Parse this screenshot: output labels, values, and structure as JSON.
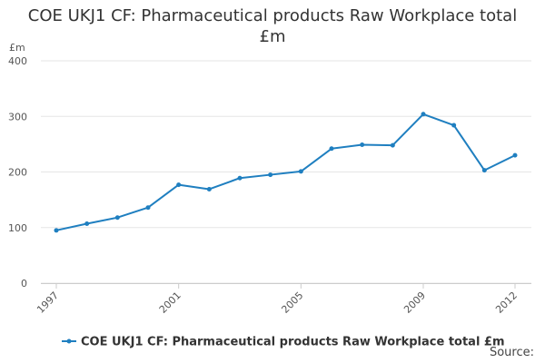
{
  "chart_data": {
    "type": "line",
    "title_line1": "COE UKJ1 CF: Pharmaceutical products Raw Workplace total",
    "title_line2": "£m",
    "ylabel": "£m",
    "x": [
      1997,
      1998,
      1999,
      2000,
      2001,
      2002,
      2003,
      2004,
      2005,
      2006,
      2007,
      2008,
      2009,
      2010,
      2011,
      2012
    ],
    "x_tick_labels": [
      "1997",
      "2001",
      "2005",
      "2009",
      "2012"
    ],
    "x_tick_values": [
      1997,
      2001,
      2005,
      2009,
      2012
    ],
    "series": [
      {
        "name": "COE UKJ1 CF: Pharmaceutical products Raw Workplace total £m",
        "color": "#1f7fc0",
        "values": [
          95,
          107,
          118,
          136,
          177,
          169,
          189,
          195,
          201,
          242,
          249,
          248,
          304,
          284,
          203,
          230
        ]
      }
    ],
    "ylim": [
      0,
      400
    ],
    "y_ticks": [
      0,
      100,
      200,
      300,
      400
    ],
    "xlim": [
      1997,
      2012
    ],
    "grid": true,
    "legend_position": "bottom"
  },
  "footer": {
    "source_label": "Source:"
  }
}
